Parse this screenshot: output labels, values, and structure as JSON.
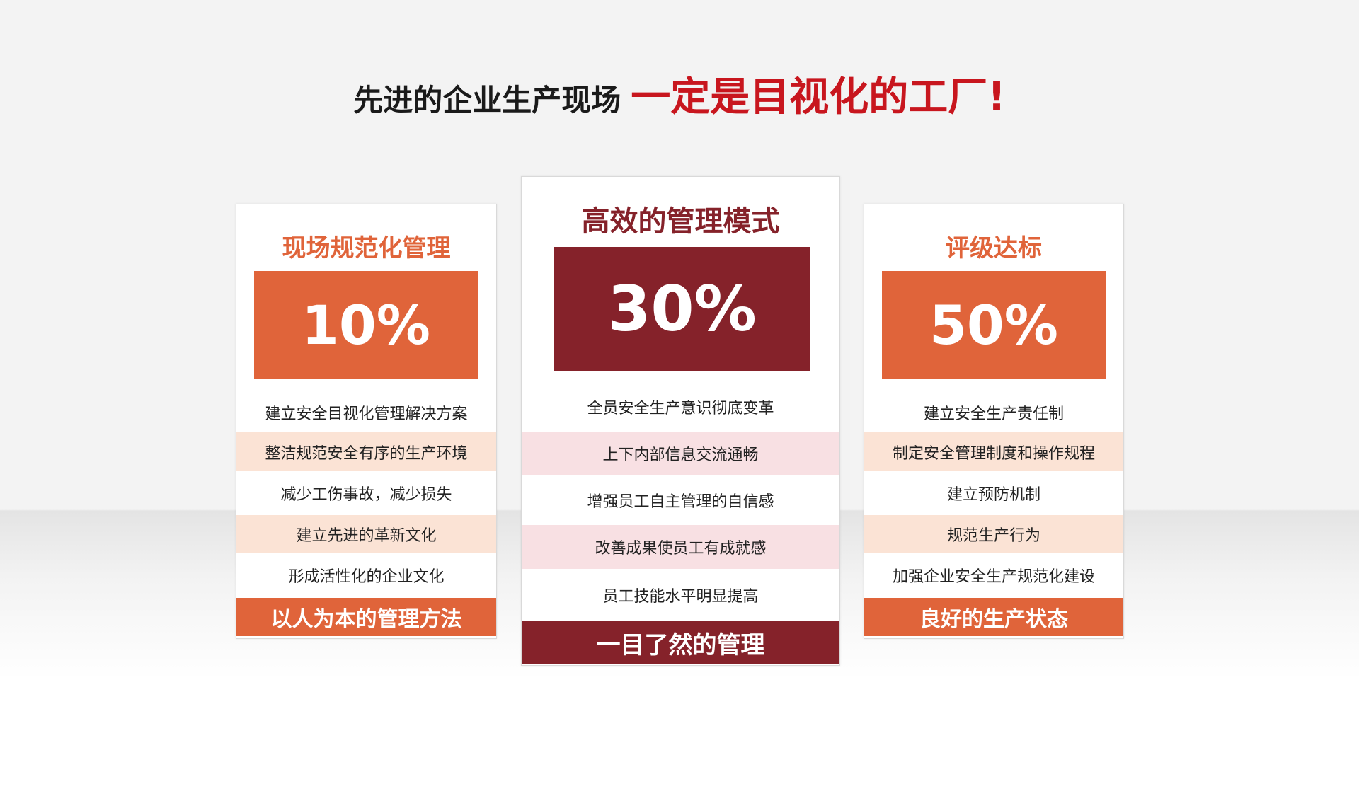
{
  "headline": {
    "part1": "先进的企业生产现场",
    "part2": "一定是目视化的工厂!"
  },
  "colors": {
    "orange": "#e0643a",
    "dark_red": "#85222a",
    "headline_red": "#c8161e",
    "peach": "#fbe3d5",
    "pink": "#f8e0e3"
  },
  "cards": [
    {
      "title": "现场规范化管理",
      "percent": "10%",
      "items": [
        "建立安全目视化管理解决方案",
        "整洁规范安全有序的生产环境",
        "减少工伤事故，减少损失",
        "建立先进的革新文化",
        "形成活性化的企业文化"
      ],
      "footer": "以人为本的管理方法"
    },
    {
      "title": "高效的管理模式",
      "percent": "30%",
      "items": [
        "全员安全生产意识彻底变革",
        "上下内部信息交流通畅",
        "增强员工自主管理的自信感",
        "改善成果使员工有成就感",
        "员工技能水平明显提高"
      ],
      "footer": "一目了然的管理"
    },
    {
      "title": "评级达标",
      "percent": "50%",
      "items": [
        "建立安全生产责任制",
        "制定安全管理制度和操作规程",
        "建立预防机制",
        "规范生产行为",
        "加强企业安全生产规范化建设"
      ],
      "footer": "良好的生产状态"
    }
  ]
}
